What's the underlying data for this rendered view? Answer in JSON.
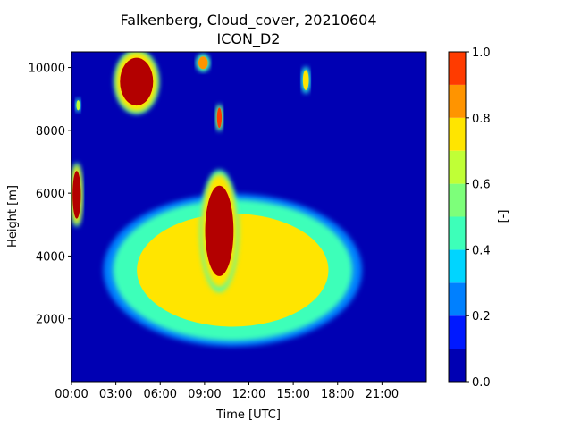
{
  "chart_data": {
    "type": "heatmap",
    "title": "Falkenberg, Cloud_cover, 20210604",
    "subtitle": "ICON_D2",
    "xlabel": "Time [UTC]",
    "ylabel": "Height [m]",
    "xticks": [
      "00:00",
      "03:00",
      "06:00",
      "09:00",
      "12:00",
      "15:00",
      "18:00",
      "21:00"
    ],
    "yticks": [
      "2000",
      "4000",
      "6000",
      "8000",
      "10000"
    ],
    "xlim_hours": [
      0,
      24
    ],
    "ylim": [
      0,
      10500
    ],
    "colorbar": {
      "label": "[-]",
      "ticks": [
        "0.0",
        "0.2",
        "0.4",
        "0.6",
        "0.8",
        "1.0"
      ],
      "levels": [
        0,
        0.1,
        0.2,
        0.3,
        0.4,
        0.5,
        0.6,
        0.7,
        0.8,
        0.9,
        1.0
      ],
      "colors": [
        "#0000b3",
        "#0019ff",
        "#0080ff",
        "#00d5ff",
        "#3dffb9",
        "#7dff7a",
        "#c0ff36",
        "#ffe500",
        "#ff9400",
        "#ff3b00",
        "#b30000"
      ]
    },
    "background_value": 0.0,
    "features": [
      {
        "name": "early low column",
        "t_start": 0.0,
        "t_end": 0.7,
        "h_bottom": 5000,
        "h_top": 6900,
        "value": 1.0
      },
      {
        "name": "high cloud morning",
        "t_start": 3.0,
        "t_end": 5.8,
        "h_bottom": 8600,
        "h_top": 10500,
        "value": 1.0
      },
      {
        "name": "high cloud near 09:00",
        "t_start": 8.5,
        "t_end": 9.3,
        "h_bottom": 9900,
        "h_top": 10400,
        "value": 0.8
      },
      {
        "name": "mid-level cloud band",
        "t_start": 2.8,
        "t_end": 19.0,
        "h_bottom": 1300,
        "h_top": 5800,
        "value": 0.7
      },
      {
        "name": "dense mid-level core",
        "t_start": 8.8,
        "t_end": 11.2,
        "h_bottom": 3000,
        "h_top": 6600,
        "value": 1.0
      },
      {
        "name": "isolated cell 8800 m",
        "t_start": 0.3,
        "t_end": 0.6,
        "h_bottom": 8600,
        "h_top": 9000,
        "value": 0.6
      },
      {
        "name": "isolated cell 8400 m",
        "t_start": 9.8,
        "t_end": 10.2,
        "h_bottom": 8000,
        "h_top": 8800,
        "value": 0.9
      },
      {
        "name": "isolated cell 9600 m",
        "t_start": 15.6,
        "t_end": 16.1,
        "h_bottom": 9200,
        "h_top": 10000,
        "value": 0.7
      }
    ]
  }
}
